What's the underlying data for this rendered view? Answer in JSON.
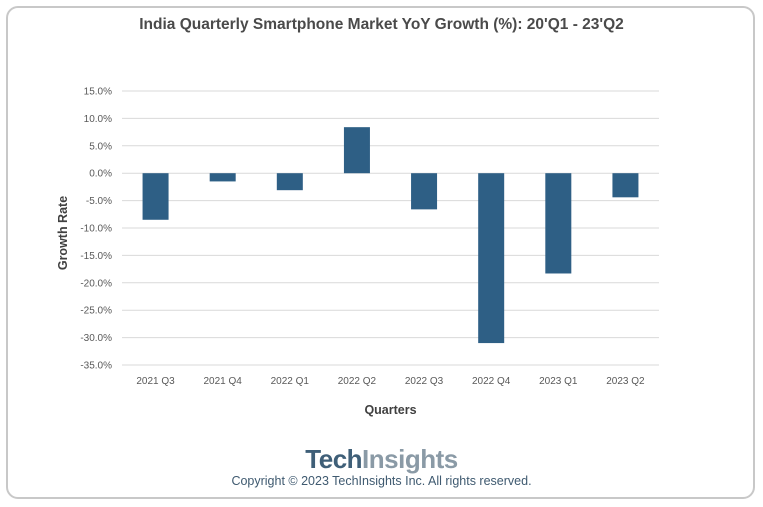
{
  "chart_data": {
    "type": "bar",
    "title": "India Quarterly Smartphone Market YoY Growth (%): 20'Q1 - 23'Q2",
    "xlabel": "Quarters",
    "ylabel": "Growth Rate",
    "categories": [
      "2021 Q3",
      "2021 Q4",
      "2022 Q1",
      "2022 Q2",
      "2022 Q3",
      "2022 Q4",
      "2023 Q1",
      "2023 Q2"
    ],
    "values": [
      -8.5,
      -1.5,
      -3.1,
      8.4,
      -6.6,
      -31.0,
      -18.3,
      -4.4
    ],
    "ylim": [
      -35,
      15
    ],
    "yticks": [
      15,
      10,
      5,
      0,
      -5,
      -10,
      -15,
      -20,
      -25,
      -30,
      -35
    ],
    "ytick_labels": [
      "15.0%",
      "10.0%",
      "5.0%",
      "0.0%",
      "-5.0%",
      "-10.0%",
      "-15.0%",
      "-20.0%",
      "-25.0%",
      "-30.0%",
      "-35.0%"
    ],
    "grid": true,
    "bar_color": "#2e5f85"
  },
  "branding": {
    "logo_part1": "Tech",
    "logo_part2": "Insights",
    "copyright": "Copyright © 2023 TechInsights Inc.  All rights reserved."
  }
}
